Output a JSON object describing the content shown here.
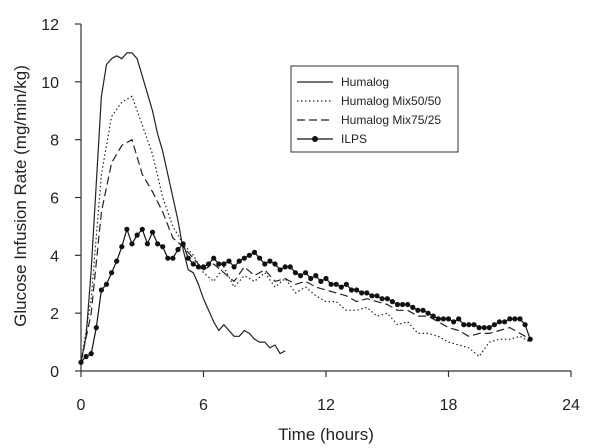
{
  "chart_data": {
    "type": "line",
    "title": "",
    "xlabel": "Time (hours)",
    "ylabel": "Glucose Infusion Rate (mg/min/kg)",
    "xlim": [
      0,
      24
    ],
    "ylim": [
      0,
      12
    ],
    "xticks": [
      0,
      6,
      12,
      18,
      24
    ],
    "yticks": [
      0,
      2,
      4,
      6,
      8,
      10,
      12
    ],
    "grid": false,
    "legend_position": "top-right",
    "series": [
      {
        "name": "Humalog",
        "style": "solid",
        "color": "#222222",
        "x": [
          0,
          0.25,
          0.5,
          0.75,
          1,
          1.25,
          1.5,
          1.75,
          2,
          2.25,
          2.5,
          2.75,
          3,
          3.25,
          3.5,
          3.75,
          4,
          4.25,
          4.5,
          4.75,
          5,
          5.25,
          5.5,
          5.75,
          6,
          6.25,
          6.5,
          6.75,
          7,
          7.25,
          7.5,
          7.75,
          8,
          8.25,
          8.5,
          8.75,
          9,
          9.25,
          9.5,
          9.75,
          10
        ],
        "y": [
          0.3,
          1.2,
          3.5,
          6.5,
          9.5,
          10.6,
          10.8,
          10.9,
          10.8,
          11.0,
          11.0,
          10.8,
          10.2,
          9.6,
          9.0,
          8.2,
          7.6,
          6.8,
          6.0,
          5.2,
          4.2,
          3.5,
          3.4,
          3.0,
          2.5,
          2.1,
          1.7,
          1.4,
          1.6,
          1.4,
          1.2,
          1.2,
          1.4,
          1.3,
          1.1,
          1.0,
          1.0,
          0.8,
          0.9,
          0.6,
          0.7
        ]
      },
      {
        "name": "Humalog Mix50/50",
        "style": "dotted",
        "color": "#222222",
        "x": [
          0,
          0.5,
          1,
          1.5,
          2,
          2.5,
          3,
          3.5,
          4,
          4.5,
          5,
          5.5,
          6,
          6.5,
          7,
          7.5,
          8,
          8.5,
          9,
          9.5,
          10,
          10.5,
          11,
          11.5,
          12,
          12.5,
          13,
          13.5,
          14,
          14.5,
          15,
          15.5,
          16,
          16.5,
          17,
          17.5,
          18,
          18.5,
          19,
          19.5,
          20,
          20.5,
          21,
          21.5,
          22
        ],
        "y": [
          0.3,
          2.5,
          6.8,
          8.8,
          9.3,
          9.5,
          8.5,
          7.5,
          6.0,
          5.0,
          4.4,
          4.0,
          3.4,
          3.1,
          3.6,
          2.9,
          3.3,
          3.1,
          3.4,
          2.9,
          3.2,
          2.7,
          2.9,
          2.6,
          2.4,
          2.4,
          2.1,
          2.1,
          2.2,
          1.9,
          2.0,
          1.6,
          1.7,
          1.3,
          1.3,
          1.2,
          1.0,
          0.9,
          0.8,
          0.5,
          1.0,
          1.1,
          1.1,
          1.2,
          1.0
        ]
      },
      {
        "name": "Humalog Mix75/25",
        "style": "dashed",
        "color": "#222222",
        "x": [
          0,
          0.5,
          1,
          1.5,
          2,
          2.5,
          3,
          3.5,
          4,
          4.5,
          5,
          5.5,
          6,
          6.5,
          7,
          7.5,
          8,
          8.5,
          9,
          9.5,
          10,
          10.5,
          11,
          11.5,
          12,
          12.5,
          13,
          13.5,
          14,
          14.5,
          15,
          15.5,
          16,
          16.5,
          17,
          17.5,
          18,
          18.5,
          19,
          19.5,
          20,
          20.5,
          21,
          21.5,
          22
        ],
        "y": [
          0.3,
          2.0,
          5.5,
          7.2,
          7.8,
          8.0,
          6.8,
          6.2,
          5.5,
          4.6,
          4.3,
          3.9,
          3.5,
          3.7,
          3.4,
          3.1,
          3.6,
          3.3,
          3.5,
          3.1,
          3.2,
          3.0,
          3.1,
          2.9,
          2.8,
          2.7,
          2.6,
          2.4,
          2.5,
          2.4,
          2.3,
          2.1,
          2.1,
          1.9,
          1.9,
          1.7,
          1.5,
          1.4,
          1.2,
          1.3,
          1.3,
          1.4,
          1.5,
          1.3,
          1.1
        ]
      },
      {
        "name": "ILPS",
        "style": "solid-markers",
        "color": "#111111",
        "x": [
          0,
          0.25,
          0.5,
          0.75,
          1,
          1.25,
          1.5,
          1.75,
          2,
          2.25,
          2.5,
          2.75,
          3,
          3.25,
          3.5,
          3.75,
          4,
          4.25,
          4.5,
          4.75,
          5,
          5.25,
          5.5,
          5.75,
          6,
          6.25,
          6.5,
          6.75,
          7,
          7.25,
          7.5,
          7.75,
          8,
          8.25,
          8.5,
          8.75,
          9,
          9.25,
          9.5,
          9.75,
          10,
          10.25,
          10.5,
          10.75,
          11,
          11.25,
          11.5,
          11.75,
          12,
          12.25,
          12.5,
          12.75,
          13,
          13.25,
          13.5,
          13.75,
          14,
          14.25,
          14.5,
          14.75,
          15,
          15.25,
          15.5,
          15.75,
          16,
          16.25,
          16.5,
          16.75,
          17,
          17.25,
          17.5,
          17.75,
          18,
          18.25,
          18.5,
          18.75,
          19,
          19.25,
          19.5,
          19.75,
          20,
          20.25,
          20.5,
          20.75,
          21,
          21.25,
          21.5,
          21.75,
          22
        ],
        "y": [
          0.3,
          0.5,
          0.6,
          1.5,
          2.8,
          3.0,
          3.4,
          3.8,
          4.3,
          4.9,
          4.4,
          4.7,
          4.9,
          4.4,
          4.8,
          4.4,
          4.3,
          3.9,
          3.9,
          4.2,
          4.4,
          3.9,
          3.7,
          3.6,
          3.6,
          3.7,
          3.9,
          3.7,
          3.7,
          3.8,
          3.6,
          3.8,
          3.9,
          4.0,
          4.1,
          3.9,
          3.7,
          3.8,
          3.7,
          3.5,
          3.6,
          3.6,
          3.4,
          3.3,
          3.4,
          3.2,
          3.3,
          3.1,
          3.2,
          3.0,
          3.0,
          2.9,
          3.0,
          2.8,
          2.8,
          2.7,
          2.7,
          2.6,
          2.6,
          2.5,
          2.5,
          2.4,
          2.3,
          2.3,
          2.3,
          2.2,
          2.1,
          2.1,
          2.0,
          1.9,
          1.8,
          1.8,
          1.8,
          1.7,
          1.8,
          1.6,
          1.6,
          1.6,
          1.5,
          1.5,
          1.5,
          1.6,
          1.7,
          1.7,
          1.8,
          1.8,
          1.8,
          1.6,
          1.1
        ]
      }
    ]
  }
}
